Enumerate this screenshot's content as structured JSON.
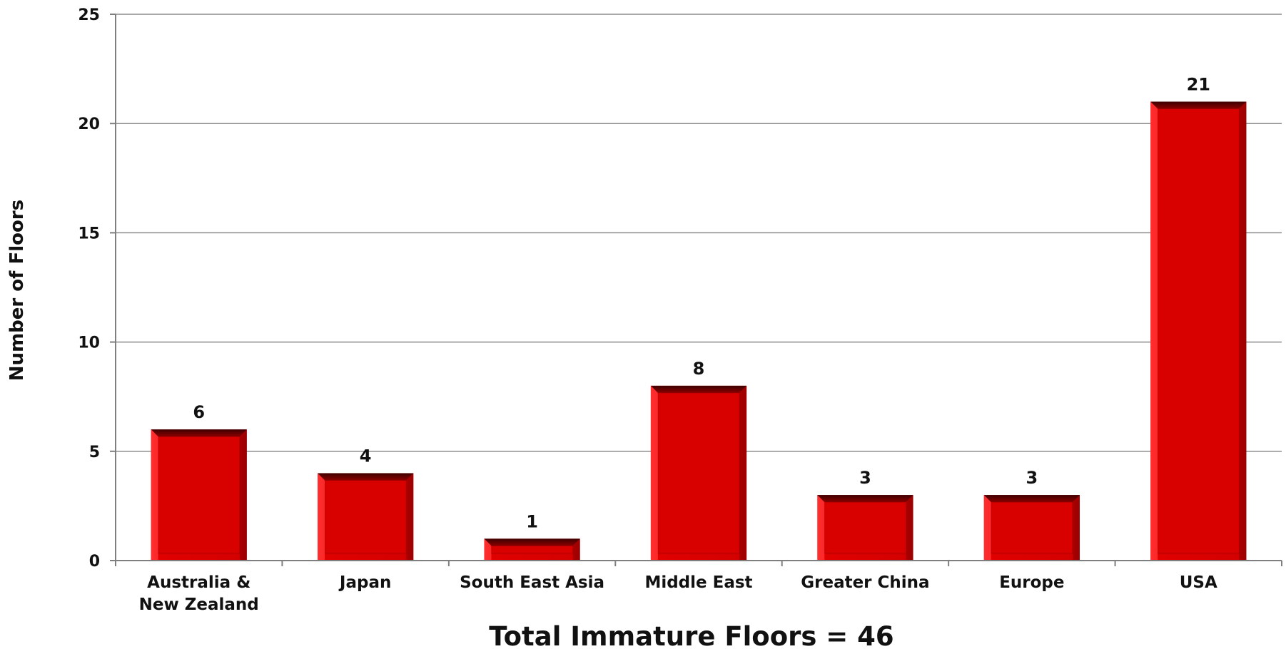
{
  "chart_data": {
    "type": "bar",
    "categories": [
      [
        "Australia &",
        "New Zealand"
      ],
      [
        "Japan"
      ],
      [
        "South East Asia"
      ],
      [
        "Middle East"
      ],
      [
        "Greater China"
      ],
      [
        "Europe"
      ],
      [
        "USA"
      ]
    ],
    "values": [
      6,
      4,
      1,
      8,
      3,
      3,
      21
    ],
    "data_labels": [
      "6",
      "4",
      "1",
      "8",
      "3",
      "3",
      "21"
    ],
    "title": "",
    "xlabel": "Total Immature Floors = 46",
    "ylabel": "Number of Floors",
    "ylim": [
      0,
      25
    ],
    "yticks": [
      0,
      5,
      10,
      15,
      20,
      25
    ],
    "grid": true,
    "legend": "none",
    "colors": {
      "bar_face": "#d90000",
      "bar_edge_light": "#ff3030",
      "bar_edge_dark": "#8a0000",
      "bar_top": "#5e0000",
      "grid": "#8c8c8c",
      "axis": "#7f7f7f"
    }
  }
}
